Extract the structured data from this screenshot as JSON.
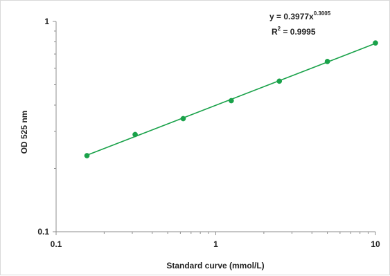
{
  "chart_data": {
    "type": "scatter",
    "xlabel": "Standard curve (mmol/L)",
    "ylabel": "OD 525 nm",
    "xscale": "log",
    "yscale": "log",
    "xlim": [
      0.1,
      10
    ],
    "ylim": [
      0.1,
      1
    ],
    "x_ticks": [
      "0.1",
      "1",
      "10"
    ],
    "y_ticks": [
      "0.1",
      "1"
    ],
    "grid": false,
    "legend": "none",
    "series": [
      {
        "x": [
          0.156,
          0.3125,
          0.625,
          1.25,
          2.5,
          5,
          10
        ],
        "y": [
          0.23,
          0.29,
          0.345,
          0.42,
          0.52,
          0.645,
          0.79
        ],
        "color": "#1aa24a",
        "marker": "circle",
        "trendline": "power"
      }
    ],
    "annotations": {
      "equation_main": "y = 0.3977x",
      "equation_exponent": "0.3005",
      "r2_main": "R",
      "r2_sup": "2",
      "r2_value": " = 0.9995"
    }
  }
}
